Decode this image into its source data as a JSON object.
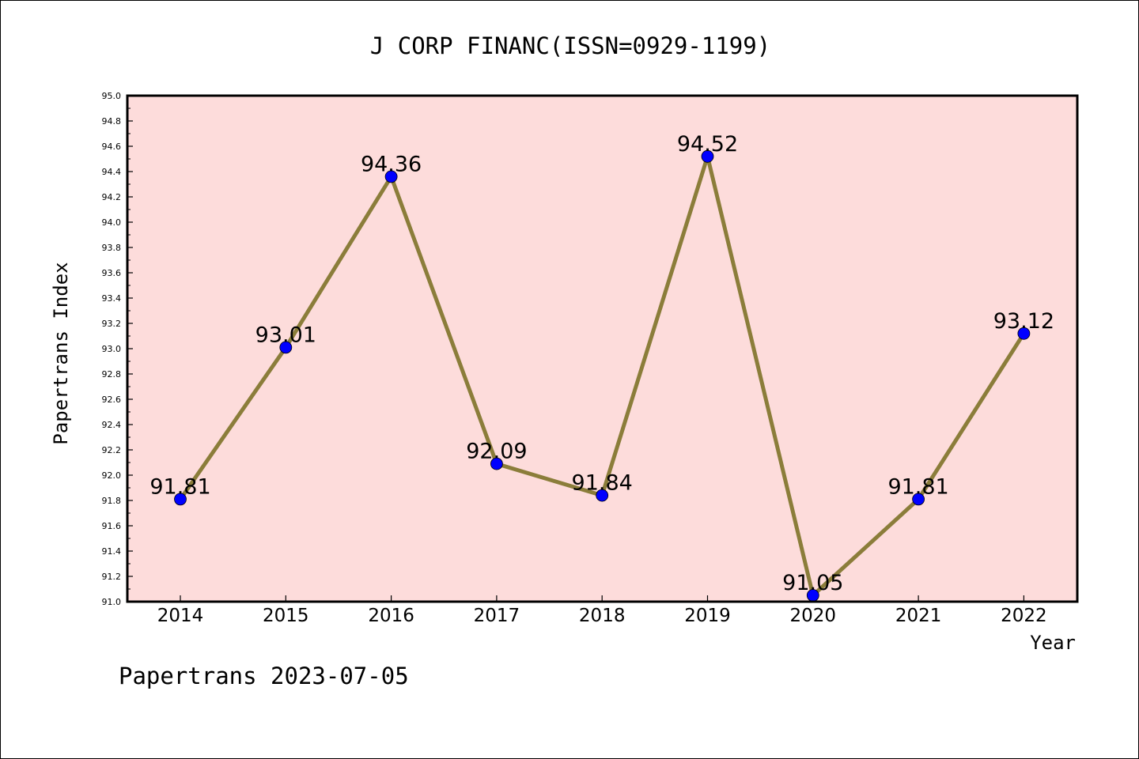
{
  "chart_data": {
    "type": "line",
    "title": "J CORP FINANC(ISSN=0929-1199)",
    "xlabel": "Year",
    "ylabel": "Papertrans Index",
    "categories": [
      "2014",
      "2015",
      "2016",
      "2017",
      "2018",
      "2019",
      "2020",
      "2021",
      "2022"
    ],
    "series": [
      {
        "values": [
          91.81,
          93.01,
          94.36,
          92.09,
          91.84,
          94.52,
          91.05,
          91.81,
          93.12
        ],
        "labels": [
          "91.81",
          "93.01",
          "94.36",
          "92.09",
          "91.84",
          "94.52",
          "91.05",
          "91.81",
          "93.12"
        ]
      }
    ],
    "ylim": [
      91.0,
      95.0
    ],
    "yticks": [
      "91.0",
      "91.2",
      "91.4",
      "91.6",
      "91.8",
      "92.0",
      "92.2",
      "92.4",
      "92.6",
      "92.8",
      "93.0",
      "93.2",
      "93.4",
      "93.6",
      "93.8",
      "94.0",
      "94.2",
      "94.4",
      "94.6",
      "94.8",
      "95.0"
    ],
    "grid": false,
    "colors": {
      "plot_background": "#fddcdb",
      "line": "#8b7d3a",
      "marker": "#0000ff"
    }
  },
  "footer": "Papertrans 2023-07-05"
}
